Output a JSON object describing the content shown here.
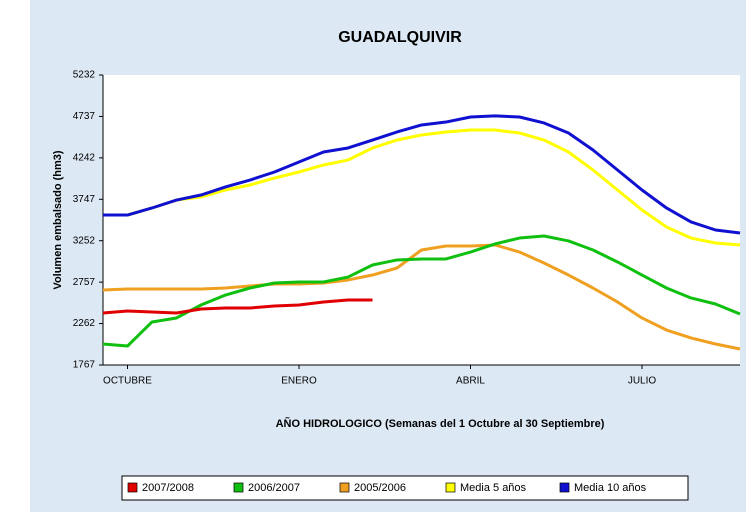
{
  "chart_data": {
    "type": "line",
    "title": "GUADALQUIVIR",
    "y_label": "Volumen   embalsado   (hm3)",
    "x_label": "AÑO HIDROLOGICO  (Semanas del 1 Octubre al 30 Septiembre)",
    "x": [
      0,
      2,
      4,
      6,
      8,
      10,
      12,
      14,
      16,
      18,
      20,
      22,
      24,
      26,
      28,
      30,
      32,
      34,
      36,
      38,
      40,
      42,
      44,
      46,
      48,
      50,
      52
    ],
    "xlim": [
      0,
      52
    ],
    "xticks": [
      {
        "value": 2,
        "label": "OCTUBRE"
      },
      {
        "value": 16,
        "label": "ENERO"
      },
      {
        "value": 30,
        "label": "ABRIL"
      },
      {
        "value": 44,
        "label": "JULIO"
      }
    ],
    "ylim": [
      1767,
      5232
    ],
    "yticks": [
      1767,
      2262,
      2757,
      3252,
      3747,
      4242,
      4737,
      5232
    ],
    "series": [
      {
        "name": "2007/2008",
        "color": "#e00000",
        "values": [
          2388,
          2412,
          2400,
          2388,
          2436,
          2448,
          2448,
          2472,
          2484,
          2520,
          2544,
          2544,
          null,
          null,
          null,
          null,
          null,
          null,
          null,
          null,
          null,
          null,
          null,
          null,
          null,
          null,
          null
        ]
      },
      {
        "name": "2006/2007",
        "color": "#10c010",
        "values": [
          2018,
          1994,
          2281,
          2329,
          2484,
          2603,
          2687,
          2747,
          2759,
          2759,
          2818,
          2962,
          3022,
          3034,
          3034,
          3117,
          3213,
          3284,
          3308,
          3249,
          3141,
          2998,
          2842,
          2687,
          2568,
          2496,
          2376
        ]
      },
      {
        "name": "2005/2006",
        "color": "#f0a020",
        "values": [
          2663,
          2675,
          2675,
          2675,
          2675,
          2687,
          2711,
          2735,
          2735,
          2747,
          2783,
          2842,
          2926,
          3141,
          3189,
          3189,
          3201,
          3117,
          2986,
          2842,
          2687,
          2520,
          2329,
          2185,
          2090,
          2018,
          1958
        ]
      },
      {
        "name": "Media 5 años",
        "color": "#ffff00",
        "values": [
          3559,
          3559,
          3643,
          3738,
          3774,
          3858,
          3918,
          4001,
          4073,
          4157,
          4216,
          4360,
          4455,
          4515,
          4551,
          4575,
          4575,
          4539,
          4455,
          4312,
          4097,
          3858,
          3619,
          3416,
          3284,
          3225,
          3201
        ]
      },
      {
        "name": "Media 10 años",
        "color": "#1010d0",
        "values": [
          3559,
          3559,
          3643,
          3738,
          3798,
          3894,
          3977,
          4073,
          4193,
          4312,
          4360,
          4455,
          4551,
          4635,
          4670,
          4730,
          4743,
          4730,
          4659,
          4539,
          4336,
          4097,
          3858,
          3643,
          3476,
          3380,
          3344
        ]
      }
    ]
  }
}
